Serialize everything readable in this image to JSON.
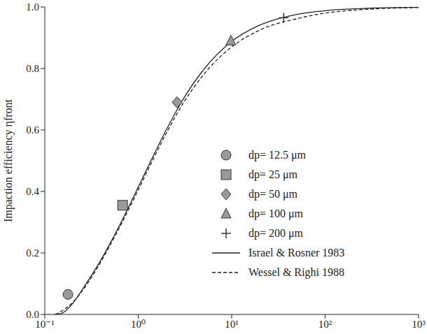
{
  "chart_data": {
    "type": "line",
    "y_label": "Impaction efficiency ηfront",
    "log": "x",
    "grid": false,
    "legend": "right",
    "xlim": [
      0.1,
      1000
    ],
    "xticks": [
      {
        "value": 0.1,
        "label": "10⁻¹"
      },
      {
        "value": 1,
        "label": "10⁰"
      },
      {
        "value": 10,
        "label": "10¹"
      },
      {
        "value": 100,
        "label": "10²"
      },
      {
        "value": 1000,
        "label": "10³"
      }
    ],
    "ylim": [
      0,
      1
    ],
    "yticks": [
      {
        "value": 0,
        "label": "0.0"
      },
      0.2,
      0.4,
      0.6,
      0.8,
      {
        "value": 1,
        "label": "1.0"
      }
    ],
    "series": [
      {
        "name": "dp= 12.5 μm",
        "type": "scatter",
        "marker": "circle",
        "color": "#9a9a9a",
        "x": [
          0.177
        ],
        "values": [
          0.065
        ]
      },
      {
        "name": "dp= 25 μm",
        "type": "scatter",
        "marker": "square",
        "color": "#9a9a9a",
        "x": [
          0.68
        ],
        "values": [
          0.355
        ]
      },
      {
        "name": "dp= 50 μm",
        "type": "scatter",
        "marker": "diamond",
        "color": "#9a9a9a",
        "x": [
          2.6
        ],
        "values": [
          0.69
        ]
      },
      {
        "name": "dp= 100 μm",
        "type": "scatter",
        "marker": "triangle",
        "color": "#9a9a9a",
        "x": [
          9.8
        ],
        "values": [
          0.89
        ]
      },
      {
        "name": "dp= 200 μm",
        "type": "scatter",
        "marker": "plus",
        "color": "#333333",
        "x": [
          36
        ],
        "values": [
          0.965
        ]
      },
      {
        "name": "Israel & Rosner 1983",
        "type": "line",
        "line_style": "solid",
        "color": "#222222",
        "x": [
          0.125,
          0.15,
          0.2,
          0.25,
          0.3,
          0.4,
          0.5,
          0.7,
          1,
          1.5,
          2,
          3,
          5,
          10,
          20,
          50,
          100,
          300,
          1000
        ],
        "values": [
          0,
          0.003,
          0.037,
          0.079,
          0.116,
          0.178,
          0.231,
          0.317,
          0.414,
          0.525,
          0.601,
          0.698,
          0.796,
          0.888,
          0.941,
          0.976,
          0.988,
          0.996,
          0.999
        ]
      },
      {
        "name": "Wessel & Righi 1988",
        "type": "line",
        "line_style": "dashed",
        "color": "#222222",
        "x": [
          0.13,
          0.15,
          0.2,
          0.3,
          0.5,
          0.7,
          1,
          1.5,
          2,
          3,
          5,
          10,
          20,
          50,
          100,
          300,
          1000
        ],
        "values": [
          0,
          0.01,
          0.04,
          0.11,
          0.225,
          0.31,
          0.405,
          0.515,
          0.59,
          0.685,
          0.78,
          0.87,
          0.925,
          0.962,
          0.98,
          0.993,
          0.998
        ]
      }
    ]
  }
}
